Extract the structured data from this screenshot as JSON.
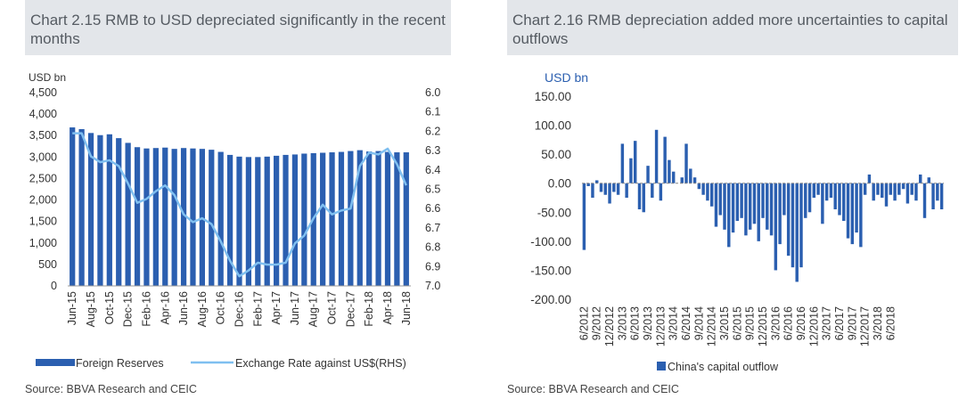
{
  "charts": [
    {
      "title": "Chart 2.15 RMB to USD depreciated significantly in the recent months",
      "source": "Source: BBVA Research and CEIC"
    },
    {
      "title": "Chart 2.16 RMB depreciation added more uncertainties to capital outflows",
      "source": "Source: BBVA Research and CEIC"
    }
  ],
  "colors": {
    "bar": "#2b5fb0",
    "line": "#7fbff0",
    "title_bg": "#e3e6ea",
    "title_text": "#555b62"
  },
  "chart_data": [
    {
      "type": "bar+line",
      "title": "Chart 2.15 RMB to USD depreciated significantly in the recent months",
      "ylabel": "USD bn",
      "ylim": [
        0,
        4500
      ],
      "y_ticks": [
        "4,500",
        "4,000",
        "3,500",
        "3,000",
        "2,500",
        "2,000",
        "1,500",
        "1,000",
        "500",
        "0"
      ],
      "y2lim": [
        6.0,
        7.0
      ],
      "y2_ticks": [
        "6.0",
        "6.1",
        "6.2",
        "6.3",
        "6.4",
        "6.5",
        "6.6",
        "6.7",
        "6.8",
        "6.9",
        "7.0"
      ],
      "x_tick_labels": [
        "Jun-15",
        "Aug-15",
        "Oct-15",
        "Dec-15",
        "Feb-16",
        "Apr-16",
        "Jun-16",
        "Aug-16",
        "Oct-16",
        "Dec-16",
        "Feb-17",
        "Apr-17",
        "Jun-17",
        "Aug-17",
        "Oct-17",
        "Dec-17",
        "Feb-18",
        "Apr-18",
        "Jun-18"
      ],
      "categories": [
        "Jun-15",
        "Jul-15",
        "Aug-15",
        "Sep-15",
        "Oct-15",
        "Nov-15",
        "Dec-15",
        "Jan-16",
        "Feb-16",
        "Mar-16",
        "Apr-16",
        "May-16",
        "Jun-16",
        "Jul-16",
        "Aug-16",
        "Sep-16",
        "Oct-16",
        "Nov-16",
        "Dec-16",
        "Jan-17",
        "Feb-17",
        "Mar-17",
        "Apr-17",
        "May-17",
        "Jun-17",
        "Jul-17",
        "Aug-17",
        "Sep-17",
        "Oct-17",
        "Nov-17",
        "Dec-17",
        "Jan-18",
        "Feb-18",
        "Mar-18",
        "Apr-18",
        "May-18",
        "Jun-18"
      ],
      "series": [
        {
          "name": "Foreign Reserves",
          "kind": "bar",
          "axis": "left",
          "values": [
            3690,
            3650,
            3560,
            3510,
            3530,
            3440,
            3330,
            3230,
            3200,
            3210,
            3220,
            3190,
            3210,
            3200,
            3190,
            3170,
            3120,
            3050,
            3010,
            3000,
            3000,
            3010,
            3030,
            3050,
            3060,
            3080,
            3090,
            3100,
            3110,
            3120,
            3140,
            3160,
            3130,
            3140,
            3120,
            3110,
            3110
          ]
        },
        {
          "name": "Exchange Rate against US$(RHS)",
          "kind": "line",
          "axis": "right",
          "values": [
            6.21,
            6.21,
            6.33,
            6.36,
            6.35,
            6.38,
            6.47,
            6.57,
            6.55,
            6.51,
            6.48,
            6.53,
            6.63,
            6.67,
            6.65,
            6.68,
            6.77,
            6.87,
            6.95,
            6.92,
            6.88,
            6.89,
            6.89,
            6.88,
            6.78,
            6.74,
            6.65,
            6.58,
            6.63,
            6.61,
            6.6,
            6.38,
            6.31,
            6.32,
            6.29,
            6.37,
            6.48
          ]
        }
      ],
      "legend_position": "bottom"
    },
    {
      "type": "bar",
      "title": "Chart 2.16 RMB depreciation added more uncertainties to capital outflows",
      "ylabel": "USD bn",
      "ylim": [
        -200,
        150
      ],
      "y_ticks": [
        "150.00",
        "100.00",
        "50.00",
        "0.00",
        "-50.00",
        "-100.00",
        "-150.00",
        "-200.00"
      ],
      "x_tick_labels": [
        "6/2012",
        "9/2012",
        "12/2012",
        "3/2013",
        "6/2013",
        "9/2013",
        "12/2013",
        "3/2014",
        "6/2014",
        "9/2014",
        "12/2014",
        "3/2015",
        "6/2015",
        "9/2015",
        "12/2015",
        "3/2016",
        "6/2016",
        "9/2016",
        "12/2016",
        "3/2017",
        "6/2017",
        "9/2017",
        "12/2017",
        "3/2018",
        "6/2018"
      ],
      "series": [
        {
          "name": "China's capital outflow",
          "values": [
            -115,
            -5,
            -25,
            5,
            -15,
            -20,
            -35,
            -15,
            -20,
            68,
            -25,
            43,
            73,
            -45,
            -50,
            30,
            -25,
            92,
            -30,
            80,
            40,
            20,
            0,
            10,
            68,
            25,
            10,
            -10,
            -20,
            -30,
            -40,
            -75,
            -55,
            -80,
            -110,
            -85,
            -65,
            -60,
            -90,
            -80,
            -70,
            -100,
            -60,
            -80,
            -90,
            -150,
            -105,
            -55,
            -125,
            -145,
            -170,
            -145,
            -60,
            -50,
            -25,
            -20,
            -70,
            -30,
            -25,
            -45,
            -55,
            -65,
            -95,
            -105,
            -85,
            -110,
            -20,
            15,
            -30,
            -20,
            -25,
            -40,
            -20,
            -30,
            -20,
            -10,
            -35,
            -20,
            -30,
            15,
            -60,
            10,
            -45,
            -30,
            -45
          ],
          "x_start": "6/2012",
          "frequency": "monthly"
        }
      ],
      "legend_position": "bottom"
    }
  ]
}
